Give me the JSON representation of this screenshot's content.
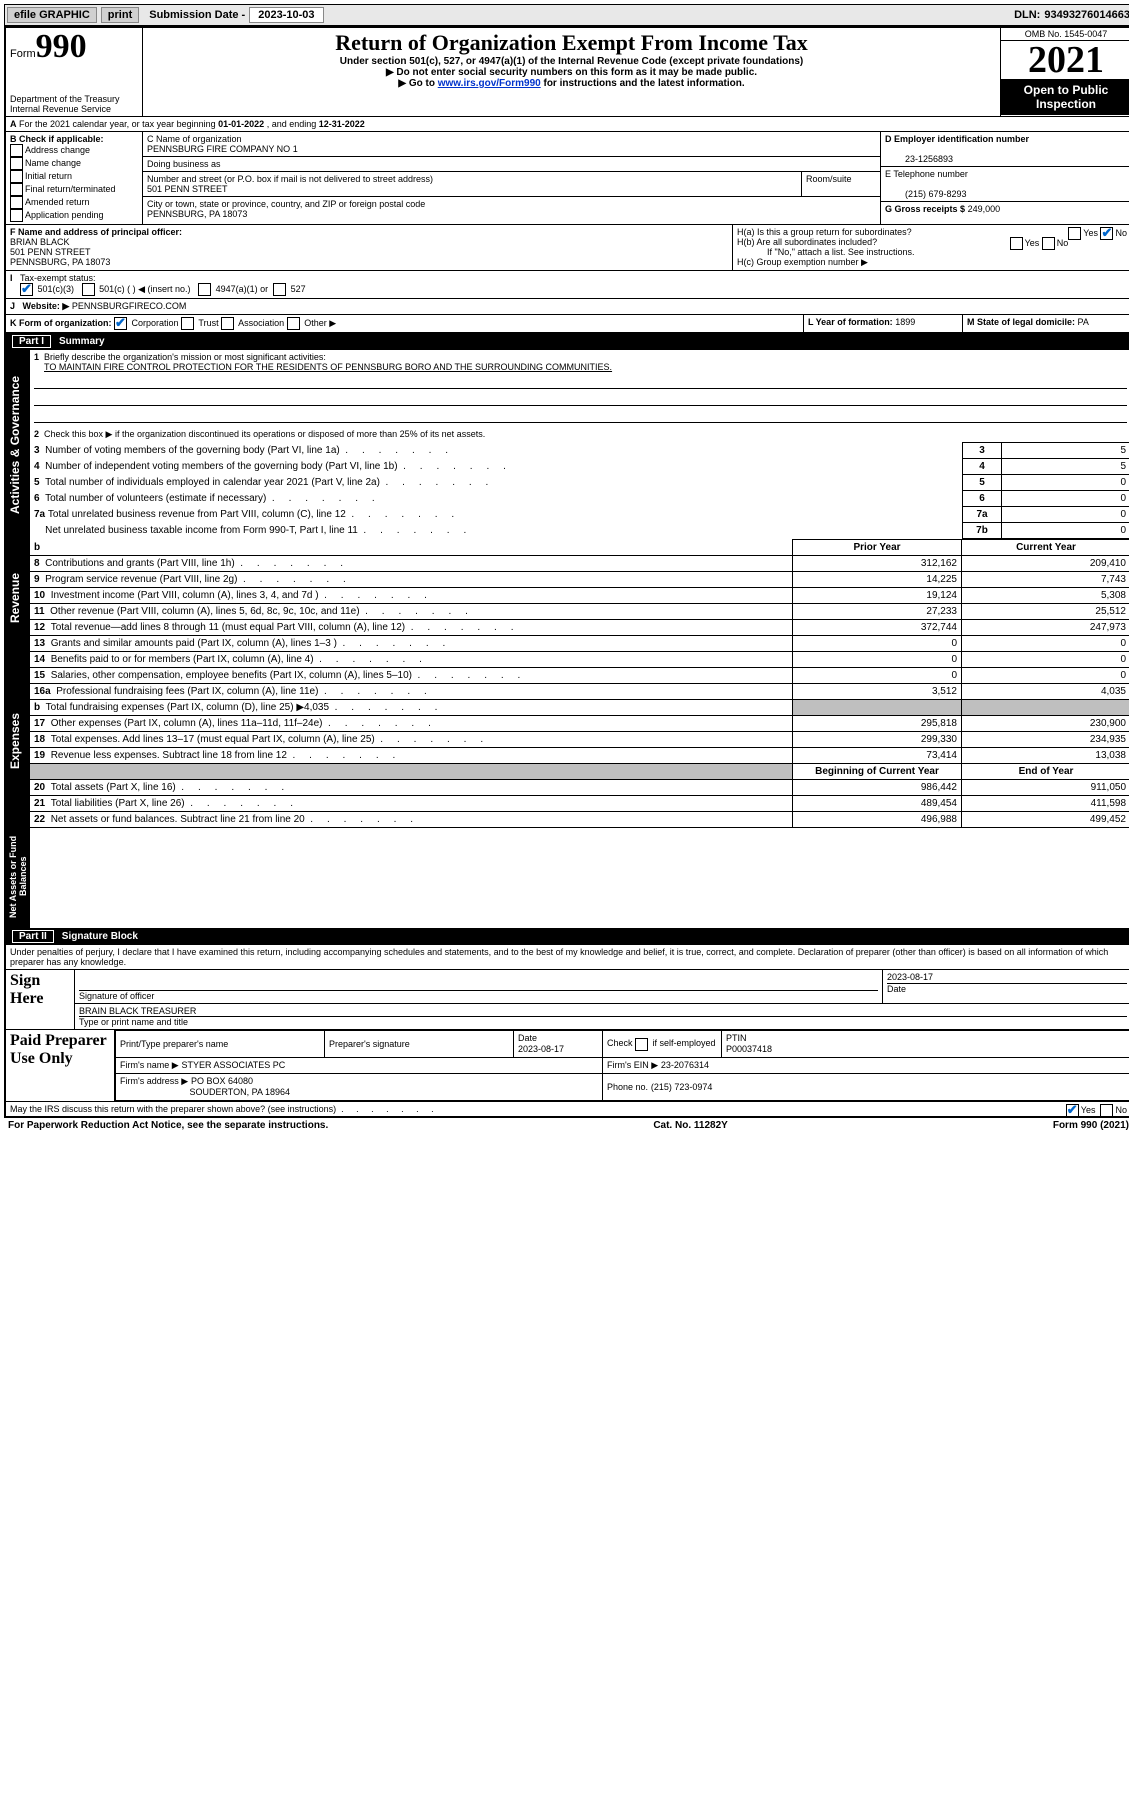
{
  "topbar": {
    "efile": "efile GRAPHIC",
    "print": "print",
    "sub_label": "Submission Date -",
    "sub_date": "2023-10-03",
    "dln_label": "DLN:",
    "dln": "93493276014663"
  },
  "header": {
    "form_word": "Form",
    "form_num": "990",
    "dept": "Department of the Treasury\nInternal Revenue Service",
    "title": "Return of Organization Exempt From Income Tax",
    "sub1": "Under section 501(c), 527, or 4947(a)(1) of the Internal Revenue Code (except private foundations)",
    "sub2": "▶ Do not enter social security numbers on this form as it may be made public.",
    "sub3_pre": "▶ Go to ",
    "sub3_link": "www.irs.gov/Form990",
    "sub3_post": " for instructions and the latest information.",
    "omb": "OMB No. 1545-0047",
    "year": "2021",
    "open": "Open to Public Inspection"
  },
  "lineA": {
    "text_pre": "For the 2021 calendar year, or tax year beginning ",
    "begin": "01-01-2022",
    "mid": " , and ending ",
    "end": "12-31-2022"
  },
  "boxB": {
    "label": "B Check if applicable:",
    "opts": [
      "Address change",
      "Name change",
      "Initial return",
      "Final return/terminated",
      "Amended return",
      "Application pending"
    ]
  },
  "boxC": {
    "label": "C Name of organization",
    "org": "PENNSBURG FIRE COMPANY NO 1",
    "dba_label": "Doing business as",
    "addr_label": "Number and street (or P.O. box if mail is not delivered to street address)",
    "room_label": "Room/suite",
    "addr": "501 PENN STREET",
    "city_label": "City or town, state or province, country, and ZIP or foreign postal code",
    "city": "PENNSBURG, PA  18073"
  },
  "boxD": {
    "label": "D Employer identification number",
    "val": "23-1256893"
  },
  "boxE": {
    "label": "E Telephone number",
    "val": "(215) 679-8293"
  },
  "boxG": {
    "label": "G Gross receipts $",
    "val": "249,000"
  },
  "boxF": {
    "label": "F Name and address of principal officer:",
    "name": "BRIAN BLACK",
    "addr1": "501 PENN STREET",
    "addr2": "PENNSBURG, PA  18073"
  },
  "boxH": {
    "a": "H(a)  Is this a group return for subordinates?",
    "b": "H(b)  Are all subordinates included?",
    "note": "If \"No,\" attach a list. See instructions.",
    "c": "H(c)  Group exemption number ▶"
  },
  "boxI": {
    "label": "Tax-exempt status:",
    "c3": "501(c)(3)",
    "c": "501(c) (  ) ◀ (insert no.)",
    "a1": "4947(a)(1) or",
    "s527": "527"
  },
  "boxJ": {
    "label": "Website: ▶",
    "val": "PENNSBURGFIRECO.COM"
  },
  "boxK": {
    "label": "K Form of organization:",
    "corp": "Corporation",
    "trust": "Trust",
    "assoc": "Association",
    "other": "Other ▶"
  },
  "boxL": {
    "label": "L Year of formation:",
    "val": "1899"
  },
  "boxM": {
    "label": "M State of legal domicile:",
    "val": "PA"
  },
  "part1": {
    "bar": "Part I",
    "title": "Summary",
    "l1_label": "Briefly describe the organization's mission or most significant activities:",
    "l1_text": "TO MAINTAIN FIRE CONTROL PROTECTION FOR THE RESIDENTS OF PENNSBURG BORO AND THE SURROUNDING COMMUNITIES.",
    "l2": "Check this box ▶        if the organization discontinued its operations or disposed of more than 25% of its net assets.",
    "l3": "Number of voting members of the governing body (Part VI, line 1a)",
    "l4": "Number of independent voting members of the governing body (Part VI, line 1b)",
    "l5": "Total number of individuals employed in calendar year 2021 (Part V, line 2a)",
    "l6": "Total number of volunteers (estimate if necessary)",
    "l7a": "Total unrelated business revenue from Part VIII, column (C), line 12",
    "l7b": "Net unrelated business taxable income from Form 990-T, Part I, line 11",
    "vals": {
      "3": "5",
      "4": "5",
      "5": "0",
      "6": "0",
      "7a": "0",
      "7b": "0"
    },
    "prior_hdr": "Prior Year",
    "curr_hdr": "Current Year",
    "tabs": {
      "ag": "Activities & Governance",
      "rev": "Revenue",
      "exp": "Expenses",
      "na": "Net Assets or Fund Balances"
    },
    "rows": [
      {
        "n": "8",
        "t": "Contributions and grants (Part VIII, line 1h)",
        "p": "312,162",
        "c": "209,410"
      },
      {
        "n": "9",
        "t": "Program service revenue (Part VIII, line 2g)",
        "p": "14,225",
        "c": "7,743"
      },
      {
        "n": "10",
        "t": "Investment income (Part VIII, column (A), lines 3, 4, and 7d )",
        "p": "19,124",
        "c": "5,308"
      },
      {
        "n": "11",
        "t": "Other revenue (Part VIII, column (A), lines 5, 6d, 8c, 9c, 10c, and 11e)",
        "p": "27,233",
        "c": "25,512"
      },
      {
        "n": "12",
        "t": "Total revenue—add lines 8 through 11 (must equal Part VIII, column (A), line 12)",
        "p": "372,744",
        "c": "247,973"
      },
      {
        "n": "13",
        "t": "Grants and similar amounts paid (Part IX, column (A), lines 1–3 )",
        "p": "0",
        "c": "0"
      },
      {
        "n": "14",
        "t": "Benefits paid to or for members (Part IX, column (A), line 4)",
        "p": "0",
        "c": "0"
      },
      {
        "n": "15",
        "t": "Salaries, other compensation, employee benefits (Part IX, column (A), lines 5–10)",
        "p": "0",
        "c": "0"
      },
      {
        "n": "16a",
        "t": "Professional fundraising fees (Part IX, column (A), line 11e)",
        "p": "3,512",
        "c": "4,035"
      },
      {
        "n": "b",
        "t": "Total fundraising expenses (Part IX, column (D), line 25) ▶4,035",
        "p": "",
        "c": "",
        "gray": true
      },
      {
        "n": "17",
        "t": "Other expenses (Part IX, column (A), lines 11a–11d, 11f–24e)",
        "p": "295,818",
        "c": "230,900"
      },
      {
        "n": "18",
        "t": "Total expenses. Add lines 13–17 (must equal Part IX, column (A), line 25)",
        "p": "299,330",
        "c": "234,935"
      },
      {
        "n": "19",
        "t": "Revenue less expenses. Subtract line 18 from line 12",
        "p": "73,414",
        "c": "13,038"
      }
    ],
    "bcy": "Beginning of Current Year",
    "eoy": "End of Year",
    "net_rows": [
      {
        "n": "20",
        "t": "Total assets (Part X, line 16)",
        "p": "986,442",
        "c": "911,050"
      },
      {
        "n": "21",
        "t": "Total liabilities (Part X, line 26)",
        "p": "489,454",
        "c": "411,598"
      },
      {
        "n": "22",
        "t": "Net assets or fund balances. Subtract line 21 from line 20",
        "p": "496,988",
        "c": "499,452"
      }
    ]
  },
  "part2": {
    "bar": "Part II",
    "title": "Signature Block",
    "decl": "Under penalties of perjury, I declare that I have examined this return, including accompanying schedules and statements, and to the best of my knowledge and belief, it is true, correct, and complete. Declaration of preparer (other than officer) is based on all information of which preparer has any knowledge.",
    "sign_here": "Sign Here",
    "sig_officer": "Signature of officer",
    "sig_date_label": "Date",
    "sig_date": "2023-08-17",
    "officer_name": "BRAIN BLACK  TREASURER",
    "type_name": "Type or print name and title",
    "paid": "Paid Preparer Use Only",
    "col_name": "Print/Type preparer's name",
    "col_sig": "Preparer's signature",
    "col_date": "Date",
    "col_date_v": "2023-08-17",
    "col_check": "Check        if self-employed",
    "col_ptin": "PTIN",
    "ptin": "P00037418",
    "firm_name_l": "Firm's name    ▶",
    "firm_name": "STYER ASSOCIATES PC",
    "firm_ein_l": "Firm's EIN ▶",
    "firm_ein": "23-2076314",
    "firm_addr_l": "Firm's address ▶",
    "firm_addr1": "PO BOX 64080",
    "firm_addr2": "SOUDERTON, PA  18964",
    "phone_l": "Phone no.",
    "phone": "(215) 723-0974",
    "may": "May the IRS discuss this return with the preparer shown above? (see instructions)"
  },
  "footer": {
    "pra": "For Paperwork Reduction Act Notice, see the separate instructions.",
    "cat": "Cat. No. 11282Y",
    "form": "Form 990 (2021)"
  },
  "yn": {
    "yes": "Yes",
    "no": "No"
  }
}
